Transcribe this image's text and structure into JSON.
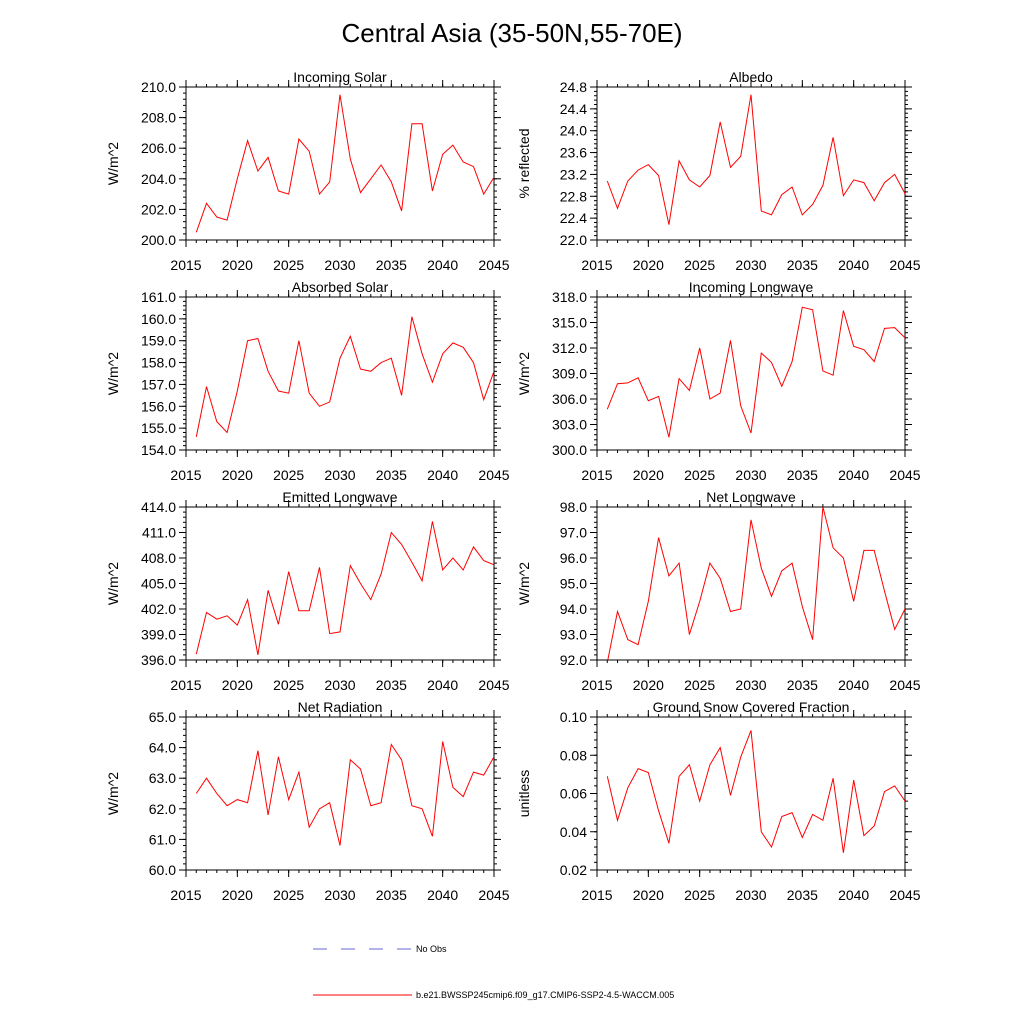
{
  "title": "Central Asia (35-50N,55-70E)",
  "colors": {
    "line": "#ff0000",
    "obs": "#6a6ad8",
    "axis": "#000000"
  },
  "legend": {
    "obs_label": "No Obs",
    "model_label": "b.e21.BWSSP245cmip6.f09_g17.CMIP6-SSP2-4.5-WACCM.005"
  },
  "chart_data": [
    {
      "type": "line",
      "title": "Incoming Solar",
      "ylabel": "W/m^2",
      "xlim": [
        2015,
        2045
      ],
      "ylim": [
        200,
        210
      ],
      "yticks": [
        200,
        202,
        204,
        206,
        208,
        210
      ],
      "ydecimals": 1,
      "xticks": [
        2015,
        2020,
        2025,
        2030,
        2035,
        2040,
        2045
      ],
      "x": [
        2016,
        2017,
        2018,
        2019,
        2020,
        2021,
        2022,
        2023,
        2024,
        2025,
        2026,
        2027,
        2028,
        2029,
        2030,
        2031,
        2032,
        2033,
        2034,
        2035,
        2036,
        2037,
        2038,
        2039,
        2040,
        2041,
        2042,
        2043,
        2044,
        2045
      ],
      "values": [
        200.5,
        202.4,
        201.5,
        201.3,
        204.0,
        206.5,
        204.5,
        205.4,
        203.2,
        203.0,
        206.6,
        205.8,
        203.0,
        203.8,
        209.5,
        205.3,
        203.1,
        204.0,
        204.9,
        203.8,
        201.9,
        207.6,
        207.6,
        203.2,
        205.6,
        206.2,
        205.1,
        204.8,
        203.0,
        204.1
      ]
    },
    {
      "type": "line",
      "title": "Albedo",
      "ylabel": "% reflected",
      "xlim": [
        2015,
        2045
      ],
      "ylim": [
        22.0,
        24.8
      ],
      "yticks": [
        22.0,
        22.4,
        22.8,
        23.2,
        23.6,
        24.0,
        24.4,
        24.8
      ],
      "ydecimals": 1,
      "xticks": [
        2015,
        2020,
        2025,
        2030,
        2035,
        2040,
        2045
      ],
      "x": [
        2016,
        2017,
        2018,
        2019,
        2020,
        2021,
        2022,
        2023,
        2024,
        2025,
        2026,
        2027,
        2028,
        2029,
        2030,
        2031,
        2032,
        2033,
        2034,
        2035,
        2036,
        2037,
        2038,
        2039,
        2040,
        2041,
        2042,
        2043,
        2044,
        2045
      ],
      "values": [
        23.08,
        22.58,
        23.08,
        23.28,
        23.38,
        23.18,
        22.28,
        23.45,
        23.1,
        22.97,
        23.18,
        24.16,
        23.33,
        23.53,
        24.66,
        22.53,
        22.46,
        22.83,
        22.97,
        22.46,
        22.65,
        23.0,
        23.88,
        22.81,
        23.1,
        23.05,
        22.72,
        23.05,
        23.2,
        22.85
      ]
    },
    {
      "type": "line",
      "title": "Absorbed Solar",
      "ylabel": "W/m^2",
      "xlim": [
        2015,
        2045
      ],
      "ylim": [
        154,
        161
      ],
      "yticks": [
        154,
        155,
        156,
        157,
        158,
        159,
        160,
        161
      ],
      "ydecimals": 1,
      "xticks": [
        2015,
        2020,
        2025,
        2030,
        2035,
        2040,
        2045
      ],
      "x": [
        2016,
        2017,
        2018,
        2019,
        2020,
        2021,
        2022,
        2023,
        2024,
        2025,
        2026,
        2027,
        2028,
        2029,
        2030,
        2031,
        2032,
        2033,
        2034,
        2035,
        2036,
        2037,
        2038,
        2039,
        2040,
        2041,
        2042,
        2043,
        2044,
        2045
      ],
      "values": [
        154.6,
        156.9,
        155.3,
        154.8,
        156.7,
        159.0,
        159.1,
        157.6,
        156.7,
        156.6,
        159.0,
        156.6,
        156.0,
        156.2,
        158.2,
        159.2,
        157.7,
        157.6,
        158.0,
        158.2,
        156.5,
        160.1,
        158.4,
        157.1,
        158.4,
        158.9,
        158.7,
        158.0,
        156.3,
        157.6
      ]
    },
    {
      "type": "line",
      "title": "Incoming Longwave",
      "ylabel": "W/m^2",
      "xlim": [
        2015,
        2045
      ],
      "ylim": [
        300,
        318
      ],
      "yticks": [
        300,
        303,
        306,
        309,
        312,
        315,
        318
      ],
      "ydecimals": 1,
      "xticks": [
        2015,
        2020,
        2025,
        2030,
        2035,
        2040,
        2045
      ],
      "x": [
        2016,
        2017,
        2018,
        2019,
        2020,
        2021,
        2022,
        2023,
        2024,
        2025,
        2026,
        2027,
        2028,
        2029,
        2030,
        2031,
        2032,
        2033,
        2034,
        2035,
        2036,
        2037,
        2038,
        2039,
        2040,
        2041,
        2042,
        2043,
        2044,
        2045
      ],
      "values": [
        304.8,
        307.8,
        307.9,
        308.5,
        305.8,
        306.3,
        301.5,
        308.4,
        307.0,
        312.0,
        306.0,
        306.7,
        312.9,
        305.2,
        302.0,
        311.4,
        310.3,
        307.5,
        310.4,
        316.8,
        316.5,
        309.3,
        308.8,
        316.4,
        312.2,
        311.8,
        310.4,
        314.3,
        314.4,
        313.2
      ]
    },
    {
      "type": "line",
      "title": "Emitted Longwave",
      "ylabel": "W/m^2",
      "xlim": [
        2015,
        2045
      ],
      "ylim": [
        396,
        414
      ],
      "yticks": [
        396,
        399,
        402,
        405,
        408,
        411,
        414
      ],
      "ydecimals": 1,
      "xticks": [
        2015,
        2020,
        2025,
        2030,
        2035,
        2040,
        2045
      ],
      "x": [
        2016,
        2017,
        2018,
        2019,
        2020,
        2021,
        2022,
        2023,
        2024,
        2025,
        2026,
        2027,
        2028,
        2029,
        2030,
        2031,
        2032,
        2033,
        2034,
        2035,
        2036,
        2037,
        2038,
        2039,
        2040,
        2041,
        2042,
        2043,
        2044,
        2045
      ],
      "values": [
        396.7,
        401.6,
        400.8,
        401.2,
        400.1,
        403.1,
        396.6,
        404.2,
        400.2,
        406.4,
        401.8,
        401.8,
        406.9,
        399.1,
        399.3,
        407.1,
        405.0,
        403.1,
        406.1,
        411.0,
        409.6,
        407.5,
        405.3,
        412.3,
        406.6,
        408.0,
        406.6,
        409.3,
        407.7,
        407.2
      ]
    },
    {
      "type": "line",
      "title": "Net Longwave",
      "ylabel": "W/m^2",
      "xlim": [
        2015,
        2045
      ],
      "ylim": [
        92,
        98
      ],
      "yticks": [
        92,
        93,
        94,
        95,
        96,
        97,
        98
      ],
      "ydecimals": 1,
      "xticks": [
        2015,
        2020,
        2025,
        2030,
        2035,
        2040,
        2045
      ],
      "x": [
        2016,
        2017,
        2018,
        2019,
        2020,
        2021,
        2022,
        2023,
        2024,
        2025,
        2026,
        2027,
        2028,
        2029,
        2030,
        2031,
        2032,
        2033,
        2034,
        2035,
        2036,
        2037,
        2038,
        2039,
        2040,
        2041,
        2042,
        2043,
        2044,
        2045
      ],
      "values": [
        91.9,
        93.9,
        92.8,
        92.6,
        94.3,
        96.8,
        95.3,
        95.8,
        93.0,
        94.3,
        95.8,
        95.2,
        93.9,
        94.0,
        97.5,
        95.6,
        94.5,
        95.5,
        95.8,
        94.1,
        92.8,
        98.0,
        96.4,
        96.0,
        94.3,
        96.3,
        96.3,
        94.7,
        93.2,
        94.0
      ]
    },
    {
      "type": "line",
      "title": "Net Radiation",
      "ylabel": "W/m^2",
      "xlim": [
        2015,
        2045
      ],
      "ylim": [
        60,
        65
      ],
      "yticks": [
        60,
        61,
        62,
        63,
        64,
        65
      ],
      "ydecimals": 1,
      "xticks": [
        2015,
        2020,
        2025,
        2030,
        2035,
        2040,
        2045
      ],
      "x": [
        2016,
        2017,
        2018,
        2019,
        2020,
        2021,
        2022,
        2023,
        2024,
        2025,
        2026,
        2027,
        2028,
        2029,
        2030,
        2031,
        2032,
        2033,
        2034,
        2035,
        2036,
        2037,
        2038,
        2039,
        2040,
        2041,
        2042,
        2043,
        2044,
        2045
      ],
      "values": [
        62.5,
        63.0,
        62.5,
        62.1,
        62.3,
        62.2,
        63.9,
        61.8,
        63.7,
        62.3,
        63.2,
        61.4,
        62.0,
        62.2,
        60.8,
        63.6,
        63.3,
        62.1,
        62.2,
        64.1,
        63.6,
        62.1,
        62.0,
        61.1,
        64.2,
        62.7,
        62.4,
        63.2,
        63.1,
        63.7
      ]
    },
    {
      "type": "line",
      "title": "Ground Snow Covered Fraction",
      "ylabel": "unitless",
      "xlim": [
        2015,
        2045
      ],
      "ylim": [
        0.02,
        0.1
      ],
      "yticks": [
        0.02,
        0.04,
        0.06,
        0.08,
        0.1
      ],
      "ydecimals": 2,
      "xticks": [
        2015,
        2020,
        2025,
        2030,
        2035,
        2040,
        2045
      ],
      "x": [
        2016,
        2017,
        2018,
        2019,
        2020,
        2021,
        2022,
        2023,
        2024,
        2025,
        2026,
        2027,
        2028,
        2029,
        2030,
        2031,
        2032,
        2033,
        2034,
        2035,
        2036,
        2037,
        2038,
        2039,
        2040,
        2041,
        2042,
        2043,
        2044,
        2045
      ],
      "values": [
        0.069,
        0.046,
        0.063,
        0.073,
        0.071,
        0.051,
        0.034,
        0.069,
        0.075,
        0.056,
        0.075,
        0.084,
        0.059,
        0.079,
        0.093,
        0.04,
        0.032,
        0.048,
        0.05,
        0.037,
        0.049,
        0.046,
        0.068,
        0.029,
        0.067,
        0.038,
        0.043,
        0.061,
        0.064,
        0.056
      ]
    }
  ]
}
